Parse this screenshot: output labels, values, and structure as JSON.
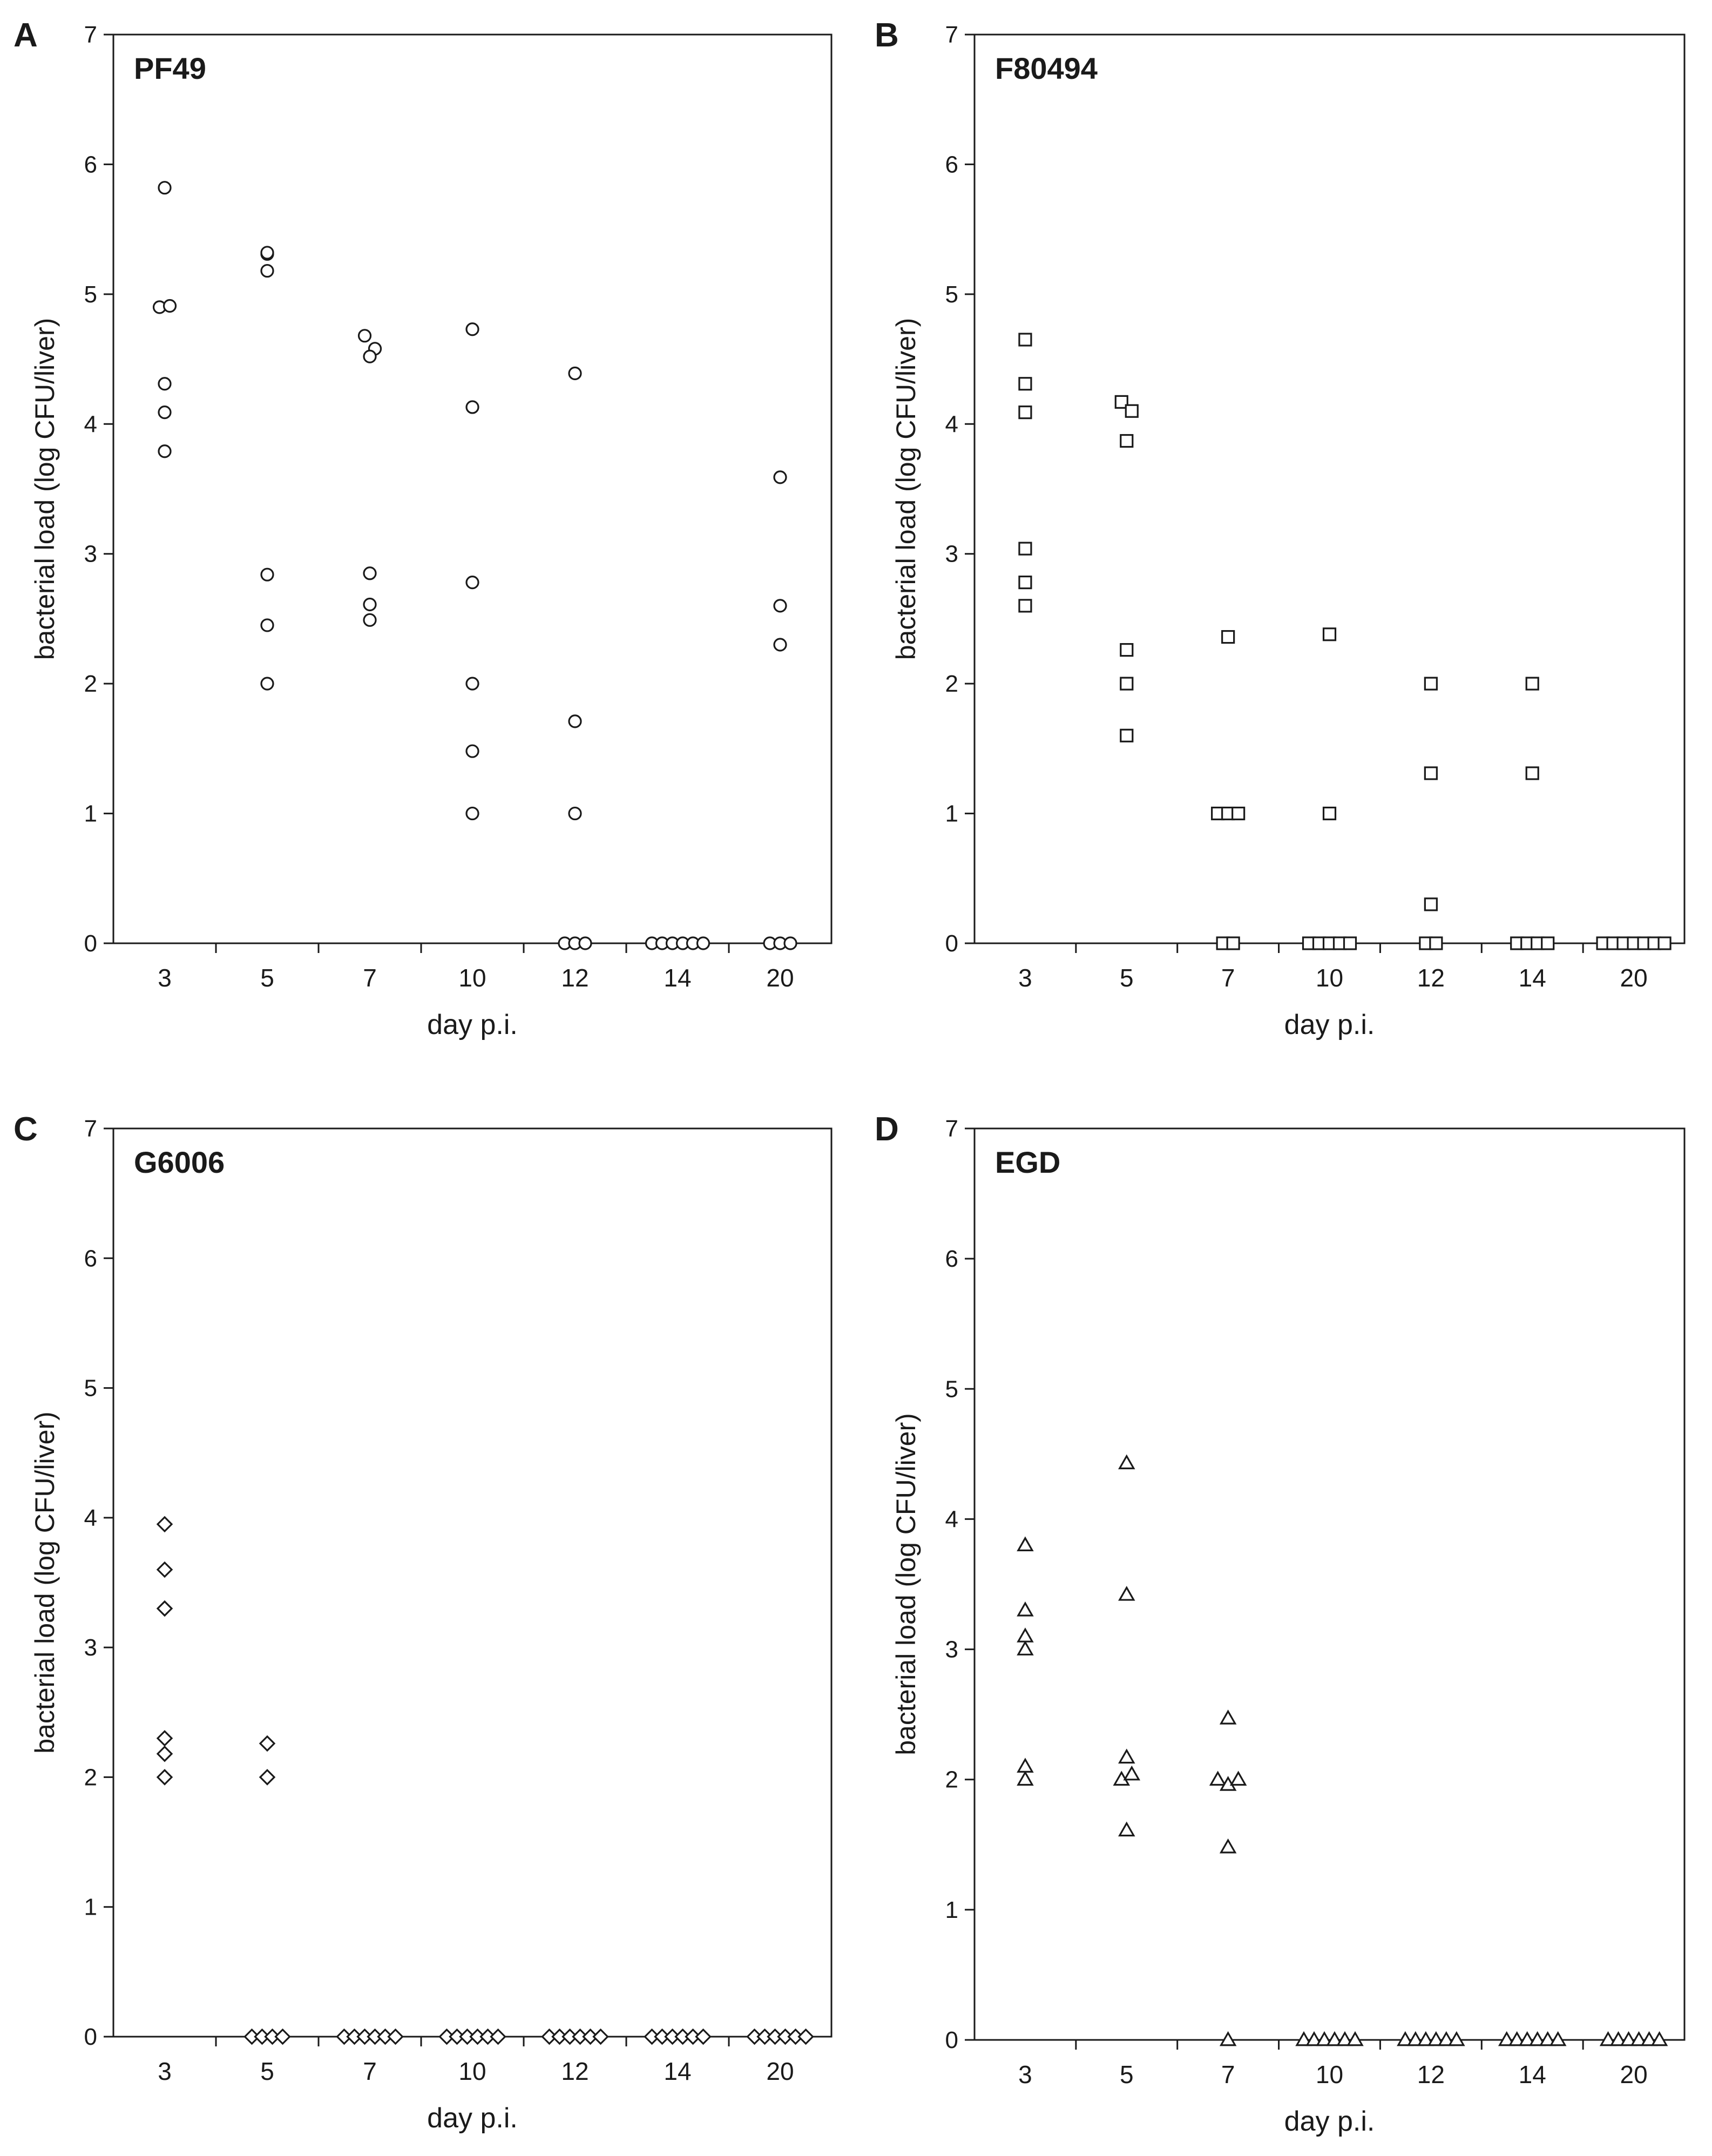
{
  "figure": {
    "xlabel": "day p.i.",
    "ylabel": "bacterial load (log CFU/liver)"
  },
  "colors": {
    "ink": "#1a1a1a",
    "background": "#ffffff",
    "marker_fill": "#ffffff"
  },
  "chart_data": [
    {
      "type": "scatter",
      "panel_letter": "A",
      "title": "PF49",
      "marker": "circle",
      "categories": [
        "3",
        "5",
        "7",
        "10",
        "12",
        "14",
        "20"
      ],
      "xlabel": "day p.i.",
      "ylabel": "bacterial load (log CFU/liver)",
      "ylim": [
        0,
        7
      ],
      "yticks": [
        0,
        1,
        2,
        3,
        4,
        5,
        6,
        7
      ],
      "grid": false,
      "points": [
        {
          "day": "3",
          "values": [
            5.82,
            4.9,
            4.91,
            4.31,
            4.09,
            3.79
          ]
        },
        {
          "day": "5",
          "values": [
            5.31,
            5.32,
            5.18,
            2.84,
            2.45,
            2.0
          ]
        },
        {
          "day": "7",
          "values": [
            4.68,
            4.58,
            4.52,
            2.85,
            2.61,
            2.49
          ]
        },
        {
          "day": "10",
          "values": [
            4.73,
            4.13,
            2.78,
            2.0,
            1.48,
            1.0
          ]
        },
        {
          "day": "12",
          "values": [
            4.39,
            1.71,
            1.0,
            0,
            0,
            0
          ]
        },
        {
          "day": "14",
          "values": [
            0,
            0,
            0,
            0,
            0,
            0
          ]
        },
        {
          "day": "20",
          "values": [
            3.59,
            2.6,
            2.3,
            0,
            0,
            0
          ]
        }
      ]
    },
    {
      "type": "scatter",
      "panel_letter": "B",
      "title": "F80494",
      "marker": "square",
      "categories": [
        "3",
        "5",
        "7",
        "10",
        "12",
        "14",
        "20"
      ],
      "xlabel": "day p.i.",
      "ylabel": "bacterial load (log CFU/liver)",
      "ylim": [
        0,
        7
      ],
      "yticks": [
        0,
        1,
        2,
        3,
        4,
        5,
        6,
        7
      ],
      "grid": false,
      "points": [
        {
          "day": "3",
          "values": [
            4.65,
            4.31,
            4.09,
            3.04,
            2.78,
            2.6
          ]
        },
        {
          "day": "5",
          "values": [
            4.17,
            4.1,
            3.87,
            2.26,
            2.0,
            1.6
          ]
        },
        {
          "day": "7",
          "values": [
            2.36,
            1.0,
            1.0,
            1.0,
            0,
            0
          ]
        },
        {
          "day": "10",
          "values": [
            2.38,
            1.0,
            0,
            0,
            0,
            0,
            0
          ]
        },
        {
          "day": "12",
          "values": [
            2.0,
            1.31,
            0.3,
            0,
            0
          ]
        },
        {
          "day": "14",
          "values": [
            2.0,
            1.31,
            0,
            0,
            0,
            0
          ]
        },
        {
          "day": "20",
          "values": [
            0,
            0,
            0,
            0,
            0,
            0,
            0
          ]
        }
      ]
    },
    {
      "type": "scatter",
      "panel_letter": "C",
      "title": "G6006",
      "marker": "diamond",
      "categories": [
        "3",
        "5",
        "7",
        "10",
        "12",
        "14",
        "20"
      ],
      "xlabel": "day p.i.",
      "ylabel": "bacterial load (log CFU/liver)",
      "ylim": [
        0,
        7
      ],
      "yticks": [
        0,
        1,
        2,
        3,
        4,
        5,
        6,
        7
      ],
      "grid": false,
      "points": [
        {
          "day": "3",
          "values": [
            3.95,
            3.6,
            3.3,
            2.3,
            2.18,
            2.0
          ]
        },
        {
          "day": "5",
          "values": [
            2.26,
            2.0,
            0,
            0,
            0,
            0
          ]
        },
        {
          "day": "7",
          "values": [
            0,
            0,
            0,
            0,
            0,
            0
          ]
        },
        {
          "day": "10",
          "values": [
            0,
            0,
            0,
            0,
            0,
            0
          ]
        },
        {
          "day": "12",
          "values": [
            0,
            0,
            0,
            0,
            0,
            0
          ]
        },
        {
          "day": "14",
          "values": [
            0,
            0,
            0,
            0,
            0,
            0
          ]
        },
        {
          "day": "20",
          "values": [
            0,
            0,
            0,
            0,
            0,
            0
          ]
        }
      ]
    },
    {
      "type": "scatter",
      "panel_letter": "D",
      "title": "EGD",
      "marker": "triangle",
      "categories": [
        "3",
        "5",
        "7",
        "10",
        "12",
        "14",
        "20"
      ],
      "xlabel": "day p.i.",
      "ylabel": "bacterial load (log CFU/liver)",
      "ylim": [
        0,
        7
      ],
      "yticks": [
        0,
        1,
        2,
        3,
        4,
        5,
        6,
        7
      ],
      "grid": false,
      "points": [
        {
          "day": "3",
          "values": [
            3.8,
            3.3,
            3.1,
            3.0,
            2.1,
            2.0
          ]
        },
        {
          "day": "5",
          "values": [
            4.43,
            3.42,
            2.17,
            2.0,
            2.04,
            1.61
          ]
        },
        {
          "day": "7",
          "values": [
            2.47,
            2.0,
            1.96,
            2.0,
            1.48,
            0
          ]
        },
        {
          "day": "10",
          "values": [
            0,
            0,
            0,
            0,
            0,
            0
          ]
        },
        {
          "day": "12",
          "values": [
            0,
            0,
            0,
            0,
            0,
            0
          ]
        },
        {
          "day": "14",
          "values": [
            0,
            0,
            0,
            0,
            0,
            0
          ]
        },
        {
          "day": "20",
          "values": [
            0,
            0,
            0,
            0,
            0,
            0
          ]
        }
      ]
    }
  ]
}
